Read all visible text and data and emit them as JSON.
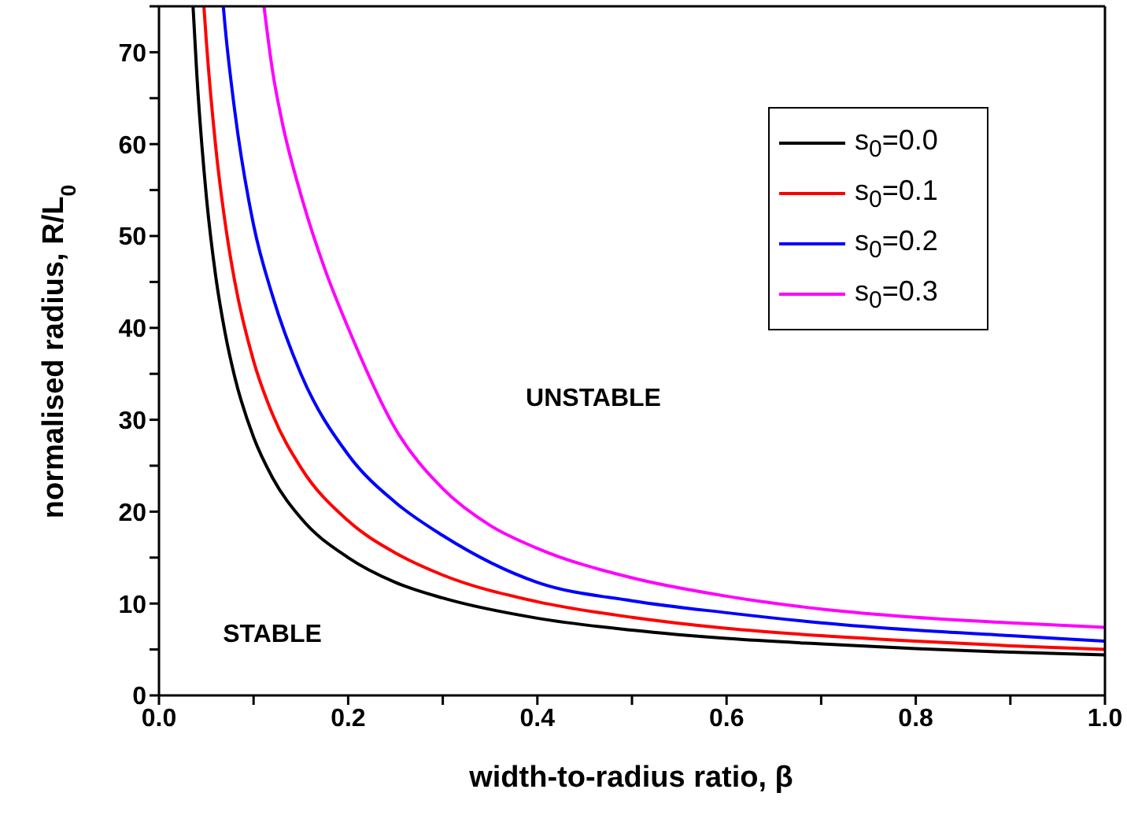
{
  "chart_data": {
    "type": "line",
    "xlabel": "width-to-radius ratio, β",
    "ylabel": "normalised radius, R/L$_{0}$",
    "xlim": [
      0,
      1
    ],
    "ylim": [
      0,
      75
    ],
    "xticks": [
      {
        "value": 0,
        "label": "0.0"
      },
      {
        "value": 0.1,
        "label": null
      },
      {
        "value": 0.2,
        "label": "0.2"
      },
      {
        "value": 0.3,
        "label": null
      },
      {
        "value": 0.4,
        "label": "0.4"
      },
      {
        "value": 0.5,
        "label": null
      },
      {
        "value": 0.6,
        "label": "0.6"
      },
      {
        "value": 0.7,
        "label": null
      },
      {
        "value": 0.8,
        "label": "0.8"
      },
      {
        "value": 0.9,
        "label": null
      },
      {
        "value": 1,
        "label": "1.0"
      }
    ],
    "yticks": [
      0,
      {
        "value": 5,
        "label": null
      },
      10,
      {
        "value": 15,
        "label": null
      },
      20,
      {
        "value": 25,
        "label": null
      },
      30,
      {
        "value": 35,
        "label": null
      },
      40,
      {
        "value": 45,
        "label": null
      },
      50,
      {
        "value": 55,
        "label": null
      },
      60,
      {
        "value": 65,
        "label": null
      },
      70,
      {
        "value": 75,
        "label": null
      }
    ],
    "legend": "top right",
    "marker": "none",
    "line_style": "solid",
    "annotations": [
      "STABLE",
      "UNSTABLE"
    ],
    "series": [
      {
        "name": "s$_{0}$=0.0",
        "color": "#000000",
        "x": [
          0.036,
          0.04,
          0.05,
          0.06,
          0.07,
          0.08,
          0.1,
          0.12,
          0.15,
          0.2,
          0.25,
          0.3,
          0.4,
          0.5,
          0.6,
          0.7,
          0.8,
          0.9,
          1.0
        ],
        "values": [
          75,
          67.6,
          54.4,
          45.6,
          39.4,
          34.7,
          28.1,
          23.7,
          19.3,
          15.0,
          12.3,
          10.6,
          8.4,
          7.1,
          6.2,
          5.6,
          5.1,
          4.7,
          4.4
        ]
      },
      {
        "name": "s$_{0}$=0.1",
        "color": "#ff0000",
        "x": [
          0.0475,
          0.05,
          0.06,
          0.07,
          0.08,
          0.1,
          0.12,
          0.15,
          0.2,
          0.25,
          0.3,
          0.4,
          0.5,
          0.6,
          0.7,
          0.8,
          0.9,
          1.0
        ],
        "values": [
          75,
          71.3,
          59.7,
          51.4,
          45.1,
          36.4,
          30.6,
          24.8,
          19.0,
          15.5,
          13.1,
          10.2,
          8.5,
          7.3,
          6.5,
          5.9,
          5.4,
          5.0
        ]
      },
      {
        "name": "s$_{0}$=0.2",
        "color": "#0000ff",
        "x": [
          0.068,
          0.07,
          0.08,
          0.1,
          0.12,
          0.15,
          0.2,
          0.25,
          0.3,
          0.4,
          0.5,
          0.6,
          0.7,
          0.8,
          0.9,
          1.0
        ],
        "values": [
          75,
          72.7,
          63.7,
          51.2,
          43.5,
          35,
          26.2,
          21.0,
          17.4,
          12.3,
          10.3,
          9.0,
          7.9,
          7.1,
          6.5,
          5.9
        ]
      },
      {
        "name": "s$_{0}$=0.3",
        "color": "#ff00ff",
        "x": [
          0.111,
          0.12,
          0.13,
          0.15,
          0.175,
          0.2,
          0.25,
          0.3,
          0.35,
          0.4,
          0.5,
          0.6,
          0.7,
          0.8,
          0.9,
          1.0
        ],
        "values": [
          75,
          68,
          62.5,
          54.5,
          46.5,
          40,
          29,
          22.5,
          18.5,
          16,
          12.8,
          10.8,
          9.4,
          8.5,
          7.9,
          7.4
        ]
      }
    ]
  }
}
